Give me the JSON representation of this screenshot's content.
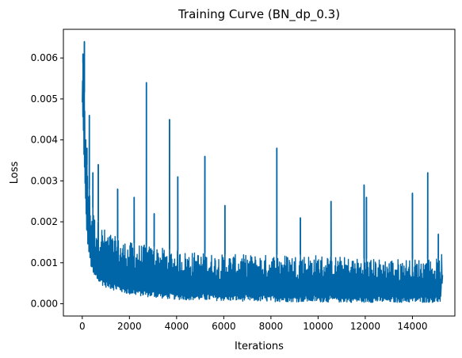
{
  "chart_data": {
    "type": "line",
    "title": "Training Curve (BN_dp_0.3)",
    "xlabel": "Iterations",
    "ylabel": "Loss",
    "xlim": [
      -800,
      15800
    ],
    "ylim": [
      -0.0003,
      0.0067
    ],
    "xticks": [
      0,
      2000,
      4000,
      6000,
      8000,
      10000,
      12000,
      14000
    ],
    "xtick_labels": [
      "0",
      "2000",
      "4000",
      "6000",
      "8000",
      "10000",
      "12000",
      "14000"
    ],
    "yticks": [
      0.0,
      0.001,
      0.002,
      0.003,
      0.004,
      0.005,
      0.006
    ],
    "ytick_labels": [
      "0.000",
      "0.001",
      "0.002",
      "0.003",
      "0.004",
      "0.005",
      "0.006"
    ],
    "grid": false,
    "series": [
      {
        "color": "#0066a8",
        "x_range": [
          0,
          15200
        ],
        "envelope": {
          "x": [
            0,
            50,
            100,
            150,
            200,
            300,
            400,
            500,
            700,
            1000,
            1500,
            2000,
            3000,
            4000,
            6000,
            8000,
            10000,
            12000,
            14000,
            15200
          ],
          "lower": [
            0.0048,
            0.004,
            0.003,
            0.0022,
            0.0016,
            0.0011,
            0.0008,
            0.0006,
            0.0005,
            0.0004,
            0.0003,
            0.00022,
            0.00015,
            0.0001,
            7e-05,
            5e-05,
            4e-05,
            3e-05,
            3e-05,
            3e-05
          ],
          "upper": [
            0.006,
            0.0058,
            0.005,
            0.004,
            0.0034,
            0.0028,
            0.0025,
            0.0022,
            0.002,
            0.0018,
            0.0016,
            0.0015,
            0.0014,
            0.0013,
            0.0012,
            0.0012,
            0.0012,
            0.0011,
            0.0011,
            0.0011
          ],
          "tail": [
            {
              "x": 15220,
              "y": 0.0004
            },
            {
              "x": 15240,
              "y": 0.0012
            },
            {
              "x": 15260,
              "y": 0.0005
            },
            {
              "x": 15280,
              "y": 0.0007
            }
          ]
        },
        "spikes": [
          {
            "x": 30,
            "y": 0.0061
          },
          {
            "x": 60,
            "y": 0.0059
          },
          {
            "x": 90,
            "y": 0.0064
          },
          {
            "x": 150,
            "y": 0.004
          },
          {
            "x": 200,
            "y": 0.0038
          },
          {
            "x": 300,
            "y": 0.0046
          },
          {
            "x": 450,
            "y": 0.0032
          },
          {
            "x": 680,
            "y": 0.0034
          },
          {
            "x": 1500,
            "y": 0.0028
          },
          {
            "x": 2200,
            "y": 0.0026
          },
          {
            "x": 2720,
            "y": 0.0054
          },
          {
            "x": 3050,
            "y": 0.0022
          },
          {
            "x": 3700,
            "y": 0.0045
          },
          {
            "x": 4050,
            "y": 0.0031
          },
          {
            "x": 5200,
            "y": 0.0036
          },
          {
            "x": 6050,
            "y": 0.0024
          },
          {
            "x": 8250,
            "y": 0.0038
          },
          {
            "x": 9250,
            "y": 0.0021
          },
          {
            "x": 10550,
            "y": 0.0025
          },
          {
            "x": 11950,
            "y": 0.0029
          },
          {
            "x": 12050,
            "y": 0.0026
          },
          {
            "x": 14000,
            "y": 0.0027
          },
          {
            "x": 14650,
            "y": 0.0032
          },
          {
            "x": 15100,
            "y": 0.0017
          }
        ]
      }
    ]
  }
}
